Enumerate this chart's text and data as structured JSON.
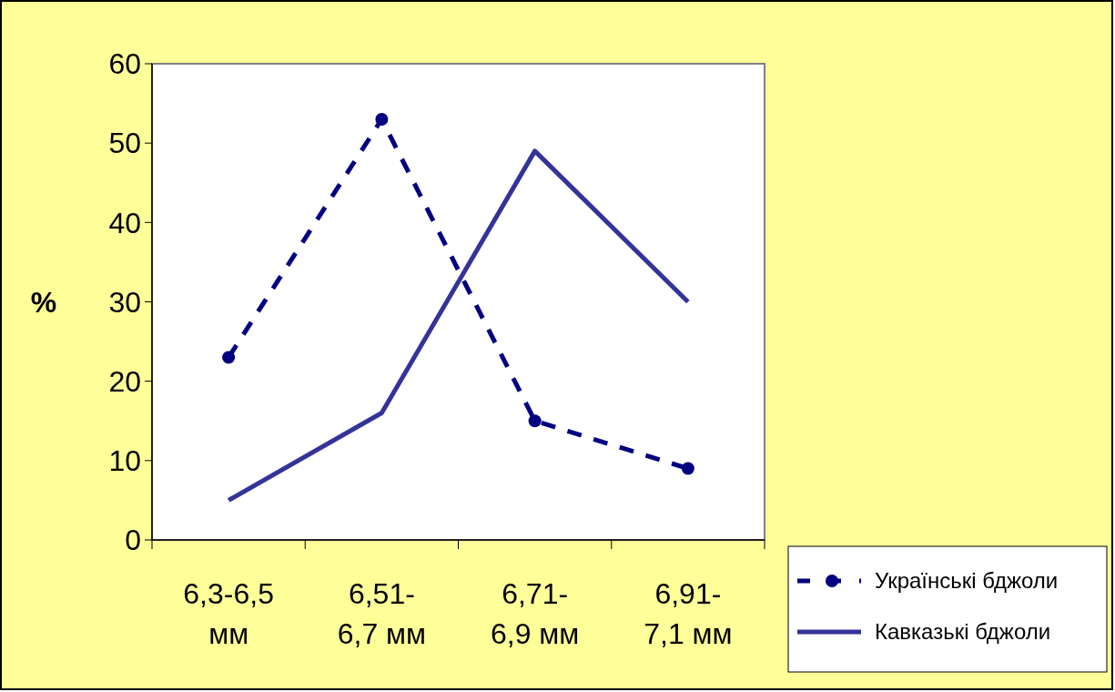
{
  "chart_data": {
    "type": "line",
    "ylabel": "%",
    "categories": [
      "6,3-6,5 мм",
      "6,51-6,7 мм",
      "6,71-6,9 мм",
      "6,91-7,1 мм"
    ],
    "series": [
      {
        "name": "Українські бджоли",
        "color": "#000080",
        "values": [
          23,
          53,
          15,
          9
        ],
        "line_style": "dashed",
        "marker": "circle"
      },
      {
        "name": "Кавказькі бджоли",
        "color": "#333399",
        "values": [
          5,
          16,
          49,
          30
        ],
        "line_style": "solid",
        "marker": "none"
      }
    ],
    "ylim": [
      0,
      60
    ],
    "yticks": [
      0,
      10,
      20,
      30,
      40,
      50,
      60
    ],
    "grid": false,
    "legend": "bottom right"
  }
}
